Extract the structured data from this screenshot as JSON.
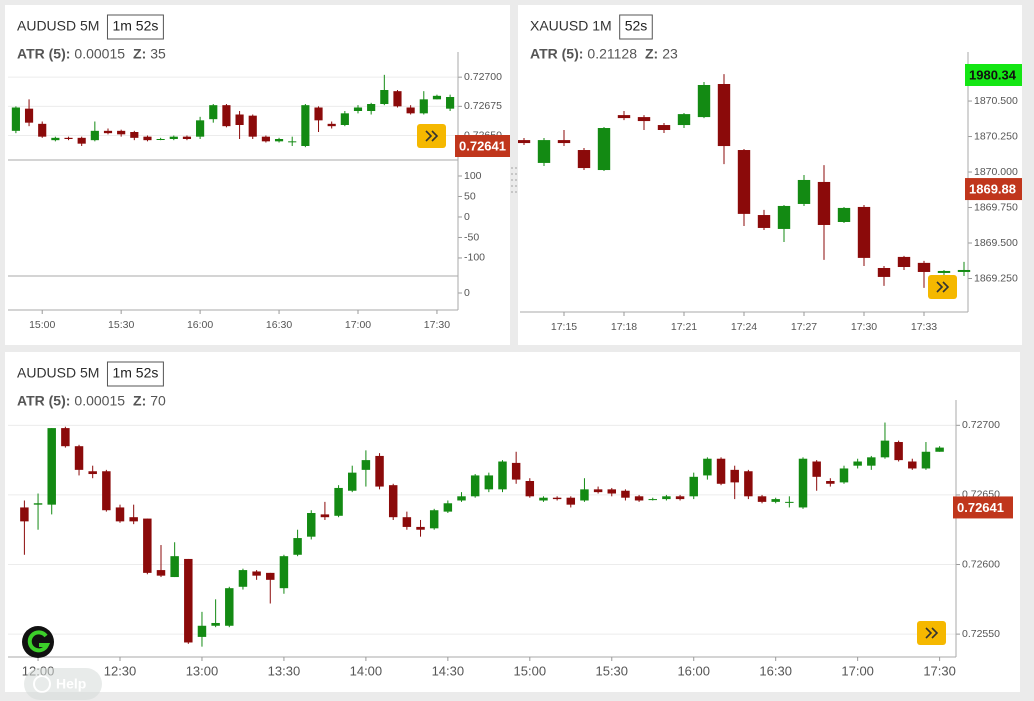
{
  "chart_data": [
    {
      "type": "candlestick",
      "title": "AUDUSD 5M",
      "timer": "1m 52s",
      "atr_label": "ATR (5):",
      "atr_value": "0.00015",
      "z_label": "Z:",
      "z_value": "35",
      "x": [
        890,
        895,
        900,
        905,
        910,
        915,
        920,
        925,
        930,
        935,
        940,
        945,
        950,
        955,
        960,
        965,
        970,
        975,
        980,
        985,
        990,
        995,
        1000,
        1005,
        1010,
        1015,
        1020,
        1025,
        1030,
        1035,
        1040,
        1045,
        1050,
        1055
      ],
      "open": [
        0.72654,
        0.72673,
        0.7266,
        0.72646,
        0.72648,
        0.72648,
        0.72646,
        0.72654,
        0.72654,
        0.72653,
        0.72649,
        0.72647,
        0.72647,
        0.72649,
        0.72649,
        0.72664,
        0.72676,
        0.72668,
        0.72667,
        0.72649,
        0.72645,
        0.72645,
        0.72641,
        0.72674,
        0.7266,
        0.72659,
        0.72671,
        0.72671,
        0.72677,
        0.72688,
        0.72674,
        0.72669,
        0.72681,
        0.72673
      ],
      "high": [
        0.72675,
        0.72681,
        0.72662,
        0.72649,
        0.72649,
        0.72649,
        0.72662,
        0.72656,
        0.72655,
        0.72654,
        0.7265,
        0.72648,
        0.7265,
        0.7265,
        0.72666,
        0.72677,
        0.72677,
        0.72671,
        0.72668,
        0.7265,
        0.72648,
        0.72649,
        0.72677,
        0.72675,
        0.72662,
        0.72671,
        0.72676,
        0.72678,
        0.72702,
        0.72689,
        0.72676,
        0.72688,
        0.72685,
        0.72685
      ],
      "low": [
        0.72652,
        0.72658,
        0.72648,
        0.72645,
        0.72646,
        0.72641,
        0.72645,
        0.72651,
        0.72649,
        0.72646,
        0.72645,
        0.72646,
        0.72646,
        0.72646,
        0.72647,
        0.72661,
        0.72657,
        0.72647,
        0.72647,
        0.72644,
        0.72644,
        0.72641,
        0.7264,
        0.72653,
        0.72656,
        0.72658,
        0.72669,
        0.72668,
        0.72676,
        0.72674,
        0.72668,
        0.72668,
        0.72681,
        0.72671
      ],
      "close": [
        0.72674,
        0.72661,
        0.72649,
        0.72648,
        0.72647,
        0.72643,
        0.72654,
        0.72652,
        0.72651,
        0.72648,
        0.72646,
        0.72647,
        0.72649,
        0.72647,
        0.72663,
        0.72676,
        0.72658,
        0.72659,
        0.72649,
        0.72645,
        0.72647,
        0.72645,
        0.72676,
        0.72663,
        0.72658,
        0.72669,
        0.72674,
        0.72677,
        0.72689,
        0.72675,
        0.72669,
        0.72681,
        0.72684,
        0.72683
      ],
      "up_color": "#138a13",
      "down_color": "#8b0a0a",
      "xlim": [
        887,
        1058
      ],
      "xticks": [
        {
          "value": 900,
          "label": "15:00"
        },
        {
          "value": 930,
          "label": "15:30"
        },
        {
          "value": 960,
          "label": "16:00"
        },
        {
          "value": 990,
          "label": "16:30"
        },
        {
          "value": 1020,
          "label": "17:00"
        },
        {
          "value": 1050,
          "label": "17:30"
        }
      ],
      "ylim": [
        0.72629,
        0.72713
      ],
      "yticks": [
        {
          "value": 0.727,
          "label": "0.72700"
        },
        0.72675,
        {
          "value": 0.7265,
          "label": "0.72650"
        }
      ],
      "grid": true,
      "price_labels": [
        {
          "value": 0.72641,
          "color": "#c0361c",
          "text_color": "#ffffff"
        }
      ],
      "indicator_panes": [
        {
          "ylim": [
            -144,
            139
          ],
          "yticks": [
            100,
            50,
            0,
            -50,
            -100
          ]
        },
        {
          "ylim": [
            -1,
            1
          ],
          "yticks": [
            0
          ]
        }
      ]
    },
    {
      "type": "candlestick",
      "title": "XAUUSD 1M",
      "timer": "52s",
      "atr_label": "ATR (5):",
      "atr_value": "0.21128",
      "z_label": "Z:",
      "z_value": "23",
      "x": [
        1033,
        1034,
        1035,
        1036,
        1037,
        1038,
        1039,
        1040,
        1041,
        1042,
        1043,
        1044,
        1045,
        1046,
        1047,
        1048,
        1049,
        1050,
        1051,
        1052,
        1053,
        1054,
        1055
      ],
      "open": [
        1870.225,
        1870.064,
        1870.225,
        1870.155,
        1870.014,
        1870.401,
        1870.387,
        1870.331,
        1870.331,
        1870.387,
        1870.62,
        1870.155,
        1869.697,
        1869.599,
        1869.775,
        1869.93,
        1869.648,
        1869.754,
        1869.324,
        1869.402,
        1869.36,
        1869.289,
        1869.296
      ],
      "high": [
        1870.24,
        1870.24,
        1870.296,
        1870.169,
        1870.317,
        1870.43,
        1870.401,
        1870.345,
        1870.416,
        1870.634,
        1870.69,
        1870.162,
        1869.733,
        1869.768,
        1869.979,
        1870.049,
        1869.754,
        1869.768,
        1869.338,
        1869.409,
        1869.374,
        1869.31,
        1869.367
      ],
      "low": [
        1870.19,
        1870.042,
        1870.183,
        1870.014,
        1870.007,
        1870.366,
        1870.296,
        1870.275,
        1870.31,
        1870.38,
        1870.056,
        1869.62,
        1869.592,
        1869.507,
        1869.761,
        1869.381,
        1869.641,
        1869.338,
        1869.198,
        1869.31,
        1869.184,
        1869.268,
        1869.268
      ],
      "close": [
        1870.204,
        1870.225,
        1870.204,
        1870.028,
        1870.31,
        1870.38,
        1870.359,
        1870.296,
        1870.408,
        1870.613,
        1870.183,
        1869.705,
        1869.606,
        1869.761,
        1869.944,
        1869.627,
        1869.747,
        1869.395,
        1869.261,
        1869.331,
        1869.296,
        1869.303,
        1869.31
      ],
      "up_color": "#138a13",
      "down_color": "#8b0a0a",
      "xlim": [
        1032.8,
        1055.2
      ],
      "xticks": [
        {
          "value": 1035,
          "label": "17:15"
        },
        {
          "value": 1038,
          "label": "17:18"
        },
        {
          "value": 1041,
          "label": "17:21"
        },
        {
          "value": 1044,
          "label": "17:24"
        },
        {
          "value": 1047,
          "label": "17:27"
        },
        {
          "value": 1050,
          "label": "17:30"
        },
        {
          "value": 1053,
          "label": "17:33"
        }
      ],
      "ylim": [
        1869.014,
        1870.775
      ],
      "yticks": [
        {
          "value": 1870.5,
          "label": "1870.500"
        },
        {
          "value": 1870.25,
          "label": "1870.250"
        },
        {
          "value": 1870,
          "label": "1870.000"
        },
        {
          "value": 1869.75,
          "label": "1869.750"
        },
        {
          "value": 1869.5,
          "label": "1869.500"
        },
        {
          "value": 1869.25,
          "label": "1869.250"
        }
      ],
      "grid": false,
      "price_labels": [
        {
          "value": 1980.34,
          "color": "#14e614",
          "text_color": "#111111"
        },
        {
          "value": 1869.88,
          "color": "#c0361c",
          "text_color": "#ffffff"
        }
      ]
    },
    {
      "type": "candlestick",
      "title": "AUDUSD 5M",
      "timer": "1m 52s",
      "atr_label": "ATR (5):",
      "atr_value": "0.00015",
      "z_label": "Z:",
      "z_value": "70",
      "x": [
        715,
        720,
        725,
        730,
        735,
        740,
        745,
        750,
        755,
        760,
        765,
        770,
        775,
        780,
        785,
        790,
        795,
        800,
        805,
        810,
        815,
        820,
        825,
        830,
        835,
        840,
        845,
        850,
        855,
        860,
        865,
        870,
        875,
        880,
        885,
        890,
        895,
        900,
        905,
        910,
        915,
        920,
        925,
        930,
        935,
        940,
        945,
        950,
        955,
        960,
        965,
        970,
        975,
        980,
        985,
        990,
        995,
        1000,
        1005,
        1010,
        1015,
        1020,
        1025,
        1030,
        1035,
        1040,
        1045,
        1050
      ],
      "open": [
        0.72641,
        0.72643,
        0.72643,
        0.72698,
        0.72685,
        0.72667,
        0.72667,
        0.72641,
        0.72634,
        0.72633,
        0.72596,
        0.72591,
        0.72604,
        0.72548,
        0.72556,
        0.72556,
        0.72584,
        0.72595,
        0.72594,
        0.72583,
        0.72607,
        0.7262,
        0.72636,
        0.72635,
        0.72653,
        0.72668,
        0.72678,
        0.72657,
        0.72634,
        0.72627,
        0.72626,
        0.72638,
        0.72646,
        0.72649,
        0.72654,
        0.72654,
        0.72673,
        0.7266,
        0.72646,
        0.72648,
        0.72648,
        0.72646,
        0.72654,
        0.72654,
        0.72653,
        0.72649,
        0.72647,
        0.72647,
        0.72649,
        0.72649,
        0.72664,
        0.72676,
        0.72668,
        0.72667,
        0.72649,
        0.72645,
        0.72645,
        0.72641,
        0.72674,
        0.7266,
        0.72659,
        0.72671,
        0.72671,
        0.72677,
        0.72688,
        0.72674,
        0.72669,
        0.72681
      ],
      "high": [
        0.72646,
        0.72651,
        0.72698,
        0.72699,
        0.72686,
        0.72671,
        0.72668,
        0.72643,
        0.72643,
        0.72633,
        0.72614,
        0.72616,
        0.72604,
        0.72566,
        0.72575,
        0.72584,
        0.72597,
        0.72596,
        0.72594,
        0.72607,
        0.72625,
        0.72639,
        0.72645,
        0.72657,
        0.72671,
        0.72682,
        0.7268,
        0.72658,
        0.72638,
        0.72632,
        0.7264,
        0.72646,
        0.72652,
        0.72665,
        0.72666,
        0.72675,
        0.72681,
        0.72662,
        0.72649,
        0.72649,
        0.72649,
        0.72662,
        0.72656,
        0.72655,
        0.72654,
        0.7265,
        0.72648,
        0.7265,
        0.7265,
        0.72666,
        0.72677,
        0.72677,
        0.72671,
        0.72668,
        0.7265,
        0.72648,
        0.72649,
        0.72677,
        0.72675,
        0.72662,
        0.72671,
        0.72676,
        0.72678,
        0.72702,
        0.72689,
        0.72676,
        0.72688,
        0.72685
      ],
      "low": [
        0.72607,
        0.72625,
        0.72636,
        0.72684,
        0.72664,
        0.72662,
        0.72638,
        0.7263,
        0.72629,
        0.72593,
        0.72591,
        0.72591,
        0.72543,
        0.72541,
        0.72555,
        0.72555,
        0.72582,
        0.72589,
        0.72572,
        0.72579,
        0.72606,
        0.72618,
        0.72632,
        0.72634,
        0.72652,
        0.72656,
        0.72654,
        0.72632,
        0.72625,
        0.7262,
        0.72625,
        0.72637,
        0.72645,
        0.72648,
        0.72652,
        0.72652,
        0.72658,
        0.72648,
        0.72645,
        0.72646,
        0.72641,
        0.72645,
        0.72651,
        0.72649,
        0.72646,
        0.72645,
        0.72646,
        0.72646,
        0.72646,
        0.72647,
        0.72661,
        0.72657,
        0.72647,
        0.72647,
        0.72644,
        0.72644,
        0.72641,
        0.7264,
        0.72653,
        0.72656,
        0.72658,
        0.72669,
        0.72668,
        0.72676,
        0.72674,
        0.72668,
        0.72668,
        0.72681
      ],
      "close": [
        0.72631,
        0.72644,
        0.72698,
        0.72685,
        0.72668,
        0.72665,
        0.72639,
        0.72631,
        0.72631,
        0.72594,
        0.72592,
        0.72606,
        0.72544,
        0.72556,
        0.72558,
        0.72583,
        0.72596,
        0.72592,
        0.72589,
        0.72606,
        0.72619,
        0.72637,
        0.72634,
        0.72655,
        0.72666,
        0.72675,
        0.72656,
        0.72634,
        0.72627,
        0.72625,
        0.72639,
        0.72644,
        0.72649,
        0.72664,
        0.72664,
        0.72674,
        0.72661,
        0.72649,
        0.72648,
        0.72647,
        0.72643,
        0.72654,
        0.72652,
        0.72651,
        0.72648,
        0.72646,
        0.72647,
        0.72649,
        0.72647,
        0.72663,
        0.72676,
        0.72658,
        0.72659,
        0.72649,
        0.72645,
        0.72647,
        0.72645,
        0.72676,
        0.72663,
        0.72658,
        0.72669,
        0.72674,
        0.72677,
        0.72689,
        0.72675,
        0.72669,
        0.72681,
        0.72684
      ],
      "up_color": "#138a13",
      "down_color": "#8b0a0a",
      "xlim": [
        709,
        1056
      ],
      "xticks": [
        {
          "value": 720,
          "label": "12:00"
        },
        {
          "value": 750,
          "label": "12:30"
        },
        {
          "value": 780,
          "label": "13:00"
        },
        {
          "value": 810,
          "label": "13:30"
        },
        {
          "value": 840,
          "label": "14:00"
        },
        {
          "value": 870,
          "label": "14:30"
        },
        {
          "value": 900,
          "label": "15:00"
        },
        {
          "value": 930,
          "label": "15:30"
        },
        {
          "value": 960,
          "label": "16:00"
        },
        {
          "value": 990,
          "label": "16:30"
        },
        {
          "value": 1020,
          "label": "17:00"
        },
        {
          "value": 1050,
          "label": "17:30"
        }
      ],
      "ylim": [
        0.72535,
        0.72711
      ],
      "yticks": [
        {
          "value": 0.727,
          "label": "0.72700"
        },
        {
          "value": 0.7265,
          "label": "0.72650"
        },
        {
          "value": 0.726,
          "label": "0.72600"
        },
        {
          "value": 0.7255,
          "label": "0.72550"
        }
      ],
      "grid": true,
      "price_labels": [
        {
          "value": 0.72641,
          "color": "#c0361c",
          "text_color": "#ffffff"
        }
      ]
    }
  ],
  "ui": {
    "help": "Help"
  }
}
